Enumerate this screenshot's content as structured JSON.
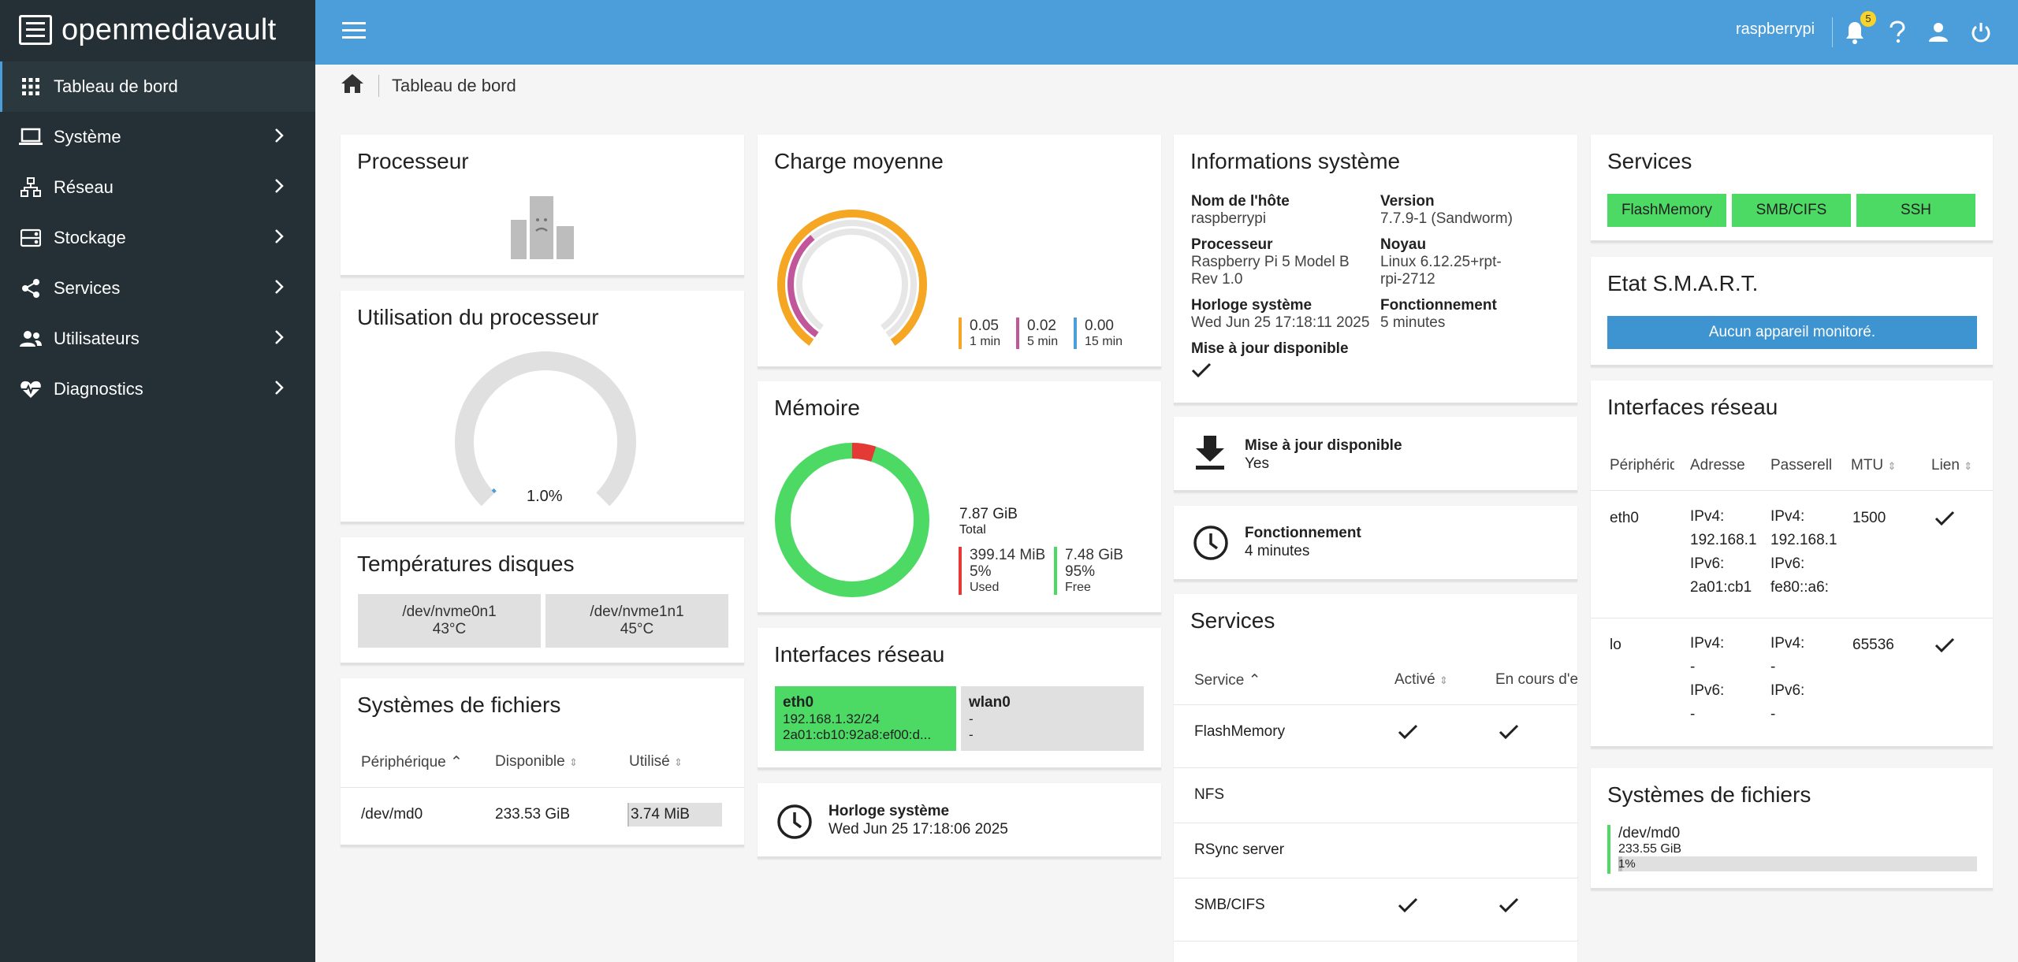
{
  "app": {
    "logo_text": "openmediavault"
  },
  "colors": {
    "accent": "#4c9edb",
    "sidebar": "#243035",
    "green": "#4cd964",
    "orange": "#f5a623",
    "magenta": "#c2569a",
    "red": "#e53935"
  },
  "sidebar": {
    "items": [
      {
        "label": "Tableau de bord",
        "icon": "grid-icon"
      },
      {
        "label": "Système",
        "icon": "laptop-icon"
      },
      {
        "label": "Réseau",
        "icon": "network-icon"
      },
      {
        "label": "Stockage",
        "icon": "storage-icon"
      },
      {
        "label": "Services",
        "icon": "share-icon"
      },
      {
        "label": "Utilisateurs",
        "icon": "users-icon"
      },
      {
        "label": "Diagnostics",
        "icon": "heartbeat-icon"
      }
    ]
  },
  "topbar": {
    "hostname": "raspberrypi",
    "notification_count": "5"
  },
  "breadcrumb": {
    "current": "Tableau de bord"
  },
  "processor": {
    "title": "Processeur"
  },
  "cpu_usage": {
    "title": "Utilisation du processeur",
    "value_label": "1.0%",
    "fraction": 0.01
  },
  "disk_temps": {
    "title": "Températures disques",
    "disks": [
      {
        "device": "/dev/nvme0n1",
        "temp": "43°C"
      },
      {
        "device": "/dev/nvme1n1",
        "temp": "45°C"
      }
    ]
  },
  "filesystems": {
    "title": "Systèmes de fichiers",
    "columns": [
      "Périphérique",
      "Disponible",
      "Utilisé"
    ],
    "rows": [
      {
        "device": "/dev/md0",
        "available": "233.53 GiB",
        "used": "3.74 MiB"
      }
    ]
  },
  "load_avg": {
    "title": "Charge moyenne",
    "items": [
      {
        "value": "0.05",
        "label": "1 min"
      },
      {
        "value": "0.02",
        "label": "5 min"
      },
      {
        "value": "0.00",
        "label": "15 min"
      }
    ]
  },
  "memory": {
    "title": "Mémoire",
    "total_value": "7.87 GiB",
    "total_label": "Total",
    "used_value": "399.14 MiB",
    "used_pct": "5%",
    "used_label": "Used",
    "used_fraction": 0.05,
    "free_value": "7.48 GiB",
    "free_pct": "95%",
    "free_label": "Free"
  },
  "net_chips": {
    "title": "Interfaces réseau",
    "items": [
      {
        "name": "eth0",
        "line1": "192.168.1.32/24",
        "line2": "2a01:cb10:92a8:ef00:d..."
      },
      {
        "name": "wlan0",
        "line1": "-",
        "line2": "-"
      }
    ]
  },
  "clock_card": {
    "title": "Horloge système",
    "value": "Wed Jun 25 17:18:06 2025"
  },
  "sysinfo": {
    "title": "Informations système",
    "hostname_label": "Nom de l'hôte",
    "hostname": "raspberrypi",
    "version_label": "Version",
    "version": "7.7.9-1 (Sandworm)",
    "cpu_label": "Processeur",
    "cpu_line1": "Raspberry Pi 5 Model B",
    "cpu_line2": "Rev 1.0",
    "kernel_label": "Noyau",
    "kernel_line1": "Linux 6.12.25+rpt-",
    "kernel_line2": "rpi-2712",
    "clock_label": "Horloge système",
    "clock": "Wed Jun 25 17:18:11 2025",
    "uptime_label": "Fonctionnement",
    "uptime": "5 minutes",
    "update_label": "Mise à jour disponible"
  },
  "update_card": {
    "title": "Mise à jour disponible",
    "value": "Yes"
  },
  "uptime_card": {
    "title": "Fonctionnement",
    "value": "4 minutes"
  },
  "services_table": {
    "title": "Services",
    "columns": [
      "Service",
      "Activé",
      "En cours d'exécution"
    ],
    "rows": [
      {
        "name": "FlashMemory",
        "enabled": true,
        "running": true
      },
      {
        "name": "NFS",
        "enabled": false,
        "running": false
      },
      {
        "name": "RSync server",
        "enabled": false,
        "running": false
      },
      {
        "name": "SMB/CIFS",
        "enabled": true,
        "running": true
      }
    ]
  },
  "services_chips": {
    "title": "Services",
    "items": [
      "FlashMemory",
      "SMB/CIFS",
      "SSH"
    ]
  },
  "smart": {
    "title": "Etat S.M.A.R.T.",
    "message": "Aucun appareil monitoré."
  },
  "net_table": {
    "title": "Interfaces réseau",
    "columns": [
      "Périphérique",
      "Adresse",
      "Passerelle",
      "MTU",
      "Lien"
    ],
    "rows": [
      {
        "device": "eth0",
        "addr": [
          "IPv4:",
          "192.168.1",
          "IPv6:",
          "2a01:cb1"
        ],
        "gw": [
          "IPv4:",
          "192.168.1",
          "IPv6:",
          "fe80::a6:"
        ],
        "mtu": "1500"
      },
      {
        "device": "lo",
        "addr": [
          "IPv4:",
          "-",
          "IPv6:",
          "-"
        ],
        "gw": [
          "IPv4:",
          "-",
          "IPv6:",
          "-"
        ],
        "mtu": "65536"
      }
    ]
  },
  "fs_small": {
    "title": "Systèmes de fichiers",
    "device": "/dev/md0",
    "size": "233.55 GiB",
    "pct": "1%"
  }
}
